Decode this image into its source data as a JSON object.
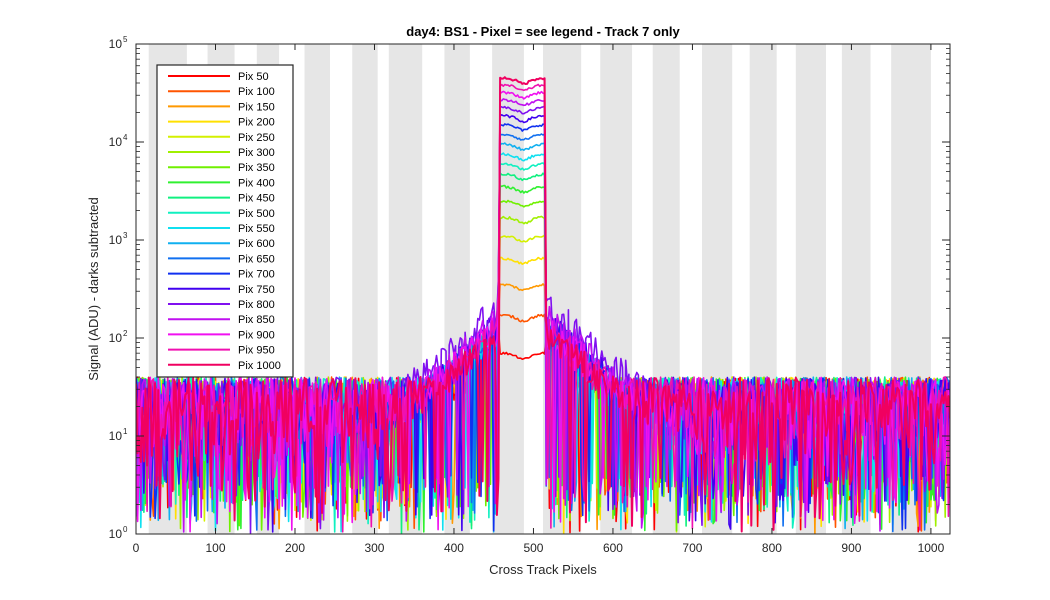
{
  "chart_data": {
    "type": "line",
    "title": "day4: BS1 - Pixel = see legend - Track 7 only",
    "xlabel": "Cross Track Pixels",
    "ylabel": "Signal (ADU) - darks subtracted",
    "xlim": [
      0,
      1024
    ],
    "ylim": [
      1,
      100000
    ],
    "yscale": "log",
    "x_ticks": [
      0,
      100,
      200,
      300,
      400,
      500,
      600,
      700,
      800,
      900,
      1000
    ],
    "y_ticks": [
      {
        "value": 1,
        "base": "10",
        "exp": "0"
      },
      {
        "value": 10,
        "base": "10",
        "exp": "1"
      },
      {
        "value": 100,
        "base": "10",
        "exp": "2"
      },
      {
        "value": 1000,
        "base": "10",
        "exp": "3"
      },
      {
        "value": 10000,
        "base": "10",
        "exp": "4"
      },
      {
        "value": 100000,
        "base": "10",
        "exp": "5"
      }
    ],
    "grid": false,
    "legend_position": "top-left",
    "background_bands": {
      "color": "#e6e6e6",
      "ranges": [
        [
          16,
          64
        ],
        [
          90,
          124
        ],
        [
          152,
          180
        ],
        [
          212,
          244
        ],
        [
          272,
          304
        ],
        [
          318,
          360
        ],
        [
          388,
          420
        ],
        [
          448,
          488
        ],
        [
          512,
          560
        ],
        [
          584,
          624
        ],
        [
          650,
          684
        ],
        [
          712,
          750
        ],
        [
          772,
          806
        ],
        [
          830,
          868
        ],
        [
          888,
          924
        ],
        [
          950,
          1000
        ]
      ]
    },
    "noise_floor": {
      "x_range": [
        0,
        1024
      ],
      "typical": [
        5,
        40
      ]
    },
    "peak_region": {
      "x_range": [
        455,
        520
      ]
    },
    "series": [
      {
        "name": "Pix 50",
        "color": "#ff0000",
        "peak": 70,
        "shoulder": 70
      },
      {
        "name": "Pix 100",
        "color": "#ff5500",
        "peak": 170,
        "shoulder": 90
      },
      {
        "name": "Pix 150",
        "color": "#ff9900",
        "peak": 350,
        "shoulder": 95
      },
      {
        "name": "Pix 200",
        "color": "#ffe000",
        "peak": 650,
        "shoulder": 100
      },
      {
        "name": "Pix 250",
        "color": "#d4f000",
        "peak": 1100,
        "shoulder": 100
      },
      {
        "name": "Pix 300",
        "color": "#a0f000",
        "peak": 1700,
        "shoulder": 105
      },
      {
        "name": "Pix 350",
        "color": "#70f000",
        "peak": 2500,
        "shoulder": 105
      },
      {
        "name": "Pix 400",
        "color": "#30f030",
        "peak": 3500,
        "shoulder": 110
      },
      {
        "name": "Pix 450",
        "color": "#10f080",
        "peak": 4700,
        "shoulder": 110
      },
      {
        "name": "Pix 500",
        "color": "#10f0c0",
        "peak": 6000,
        "shoulder": 115
      },
      {
        "name": "Pix 550",
        "color": "#10e0f0",
        "peak": 7500,
        "shoulder": 115
      },
      {
        "name": "Pix 600",
        "color": "#10b0f0",
        "peak": 9500,
        "shoulder": 120
      },
      {
        "name": "Pix 650",
        "color": "#1070f0",
        "peak": 12000,
        "shoulder": 125
      },
      {
        "name": "Pix 700",
        "color": "#1030f0",
        "peak": 15000,
        "shoulder": 130
      },
      {
        "name": "Pix 750",
        "color": "#4000f0",
        "peak": 18500,
        "shoulder": 140
      },
      {
        "name": "Pix 800",
        "color": "#8010f0",
        "peak": 22500,
        "shoulder": 210
      },
      {
        "name": "Pix 850",
        "color": "#c010f0",
        "peak": 27000,
        "shoulder": 150
      },
      {
        "name": "Pix 900",
        "color": "#f010f0",
        "peak": 32000,
        "shoulder": 130
      },
      {
        "name": "Pix 950",
        "color": "#f010b0",
        "peak": 38000,
        "shoulder": 120
      },
      {
        "name": "Pix 1000",
        "color": "#f00060",
        "peak": 45000,
        "shoulder": 110
      }
    ]
  }
}
